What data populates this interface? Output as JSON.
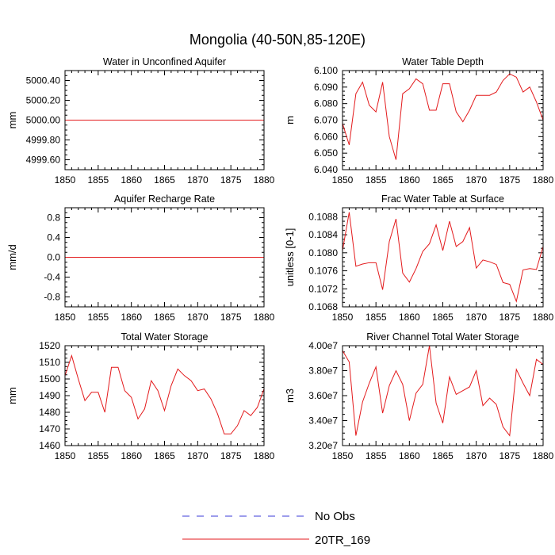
{
  "figure": {
    "title": "Mongolia (40-50N,85-120E)",
    "legend": [
      {
        "label": "No Obs",
        "color": "#3b3bd9",
        "dash": "dashed"
      },
      {
        "label": "20TR_169",
        "color": "#e31a1c",
        "dash": "solid"
      }
    ]
  },
  "chart_data": [
    {
      "type": "line",
      "title": "Water in Unconfined Aquifer",
      "xlabel": "",
      "ylabel": "mm",
      "xlim": [
        1850,
        1880
      ],
      "ylim": [
        4999.5,
        5000.5
      ],
      "xticks": [
        "1850",
        "1855",
        "1860",
        "1865",
        "1870",
        "1875",
        "1880"
      ],
      "yticks": [
        {
          "v": 4999.6,
          "label": "4999.60"
        },
        {
          "v": 4999.8,
          "label": "4999.80"
        },
        {
          "v": 5000.0,
          "label": "5000.00"
        },
        {
          "v": 5000.2,
          "label": "5000.20"
        },
        {
          "v": 5000.4,
          "label": "5000.40"
        }
      ],
      "series": [
        {
          "name": "20TR_169",
          "color": "#e31a1c",
          "x_start": 1850,
          "values": [
            5000,
            5000,
            5000,
            5000,
            5000,
            5000,
            5000,
            5000,
            5000,
            5000,
            5000,
            5000,
            5000,
            5000,
            5000,
            5000,
            5000,
            5000,
            5000,
            5000,
            5000,
            5000,
            5000,
            5000,
            5000,
            5000,
            5000,
            5000,
            5000,
            5000,
            5000
          ]
        }
      ]
    },
    {
      "type": "line",
      "title": "Water Table Depth",
      "xlabel": "",
      "ylabel": "m",
      "xlim": [
        1850,
        1880
      ],
      "ylim": [
        6.04,
        6.1
      ],
      "xticks": [
        "1850",
        "1855",
        "1860",
        "1865",
        "1870",
        "1875",
        "1880"
      ],
      "yticks": [
        {
          "v": 6.04,
          "label": "6.040"
        },
        {
          "v": 6.05,
          "label": "6.050"
        },
        {
          "v": 6.06,
          "label": "6.060"
        },
        {
          "v": 6.07,
          "label": "6.070"
        },
        {
          "v": 6.08,
          "label": "6.080"
        },
        {
          "v": 6.09,
          "label": "6.090"
        },
        {
          "v": 6.1,
          "label": "6.100"
        }
      ],
      "series": [
        {
          "name": "20TR_169",
          "color": "#e31a1c",
          "x_start": 1850,
          "values": [
            6.068,
            6.055,
            6.086,
            6.093,
            6.079,
            6.075,
            6.093,
            6.06,
            6.046,
            6.086,
            6.089,
            6.095,
            6.092,
            6.076,
            6.076,
            6.092,
            6.092,
            6.075,
            6.069,
            6.076,
            6.085,
            6.085,
            6.085,
            6.087,
            6.094,
            6.098,
            6.096,
            6.087,
            6.09,
            6.081,
            6.07
          ]
        }
      ]
    },
    {
      "type": "line",
      "title": "Aquifer Recharge Rate",
      "xlabel": "",
      "ylabel": "mm/d",
      "xlim": [
        1850,
        1880
      ],
      "ylim": [
        -1.0,
        1.0
      ],
      "xticks": [
        "1850",
        "1855",
        "1860",
        "1865",
        "1870",
        "1875",
        "1880"
      ],
      "yticks": [
        {
          "v": -0.8,
          "label": "-0.8"
        },
        {
          "v": -0.4,
          "label": "-0.4"
        },
        {
          "v": 0.0,
          "label": "0.0"
        },
        {
          "v": 0.4,
          "label": "0.4"
        },
        {
          "v": 0.8,
          "label": "0.8"
        }
      ],
      "series": [
        {
          "name": "20TR_169",
          "color": "#e31a1c",
          "x_start": 1850,
          "values": [
            0,
            0,
            0,
            0,
            0,
            0,
            0,
            0,
            0,
            0,
            0,
            0,
            0,
            0,
            0,
            0,
            0,
            0,
            0,
            0,
            0,
            0,
            0,
            0,
            0,
            0,
            0,
            0,
            0,
            0,
            0
          ]
        }
      ]
    },
    {
      "type": "line",
      "title": "Frac Water Table at Surface",
      "xlabel": "",
      "ylabel": "unitless [0-1]",
      "xlim": [
        1850,
        1880
      ],
      "ylim": [
        0.1068,
        0.109
      ],
      "xticks": [
        "1850",
        "1855",
        "1860",
        "1865",
        "1870",
        "1875",
        "1880"
      ],
      "yticks": [
        {
          "v": 0.1068,
          "label": "0.1068"
        },
        {
          "v": 0.1072,
          "label": "0.1072"
        },
        {
          "v": 0.1076,
          "label": "0.1076"
        },
        {
          "v": 0.108,
          "label": "0.1080"
        },
        {
          "v": 0.1084,
          "label": "0.1084"
        },
        {
          "v": 0.1088,
          "label": "0.1088"
        }
      ],
      "series": [
        {
          "name": "20TR_169",
          "color": "#e31a1c",
          "x_start": 1850,
          "values": [
            0.10805,
            0.1089,
            0.1077,
            0.10775,
            0.10778,
            0.10778,
            0.10718,
            0.10825,
            0.10875,
            0.10755,
            0.10735,
            0.10765,
            0.10803,
            0.1082,
            0.10862,
            0.10805,
            0.1087,
            0.10814,
            0.10825,
            0.10856,
            0.10766,
            0.10784,
            0.1078,
            0.10774,
            0.10734,
            0.1073,
            0.10692,
            0.10762,
            0.10765,
            0.10763,
            0.10814
          ]
        }
      ]
    },
    {
      "type": "line",
      "title": "Total Water Storage",
      "xlabel": "",
      "ylabel": "mm",
      "xlim": [
        1850,
        1880
      ],
      "ylim": [
        1460,
        1520
      ],
      "xticks": [
        "1850",
        "1855",
        "1860",
        "1865",
        "1870",
        "1875",
        "1880"
      ],
      "yticks": [
        {
          "v": 1460,
          "label": "1460"
        },
        {
          "v": 1470,
          "label": "1470"
        },
        {
          "v": 1480,
          "label": "1480"
        },
        {
          "v": 1490,
          "label": "1490"
        },
        {
          "v": 1500,
          "label": "1500"
        },
        {
          "v": 1510,
          "label": "1510"
        },
        {
          "v": 1520,
          "label": "1520"
        }
      ],
      "series": [
        {
          "name": "20TR_169",
          "color": "#e31a1c",
          "x_start": 1850,
          "values": [
            1502,
            1514,
            1500,
            1487,
            1492,
            1492,
            1480,
            1507,
            1507,
            1493,
            1489,
            1476,
            1482,
            1499,
            1493,
            1481,
            1496,
            1506,
            1502,
            1499,
            1493,
            1494,
            1488,
            1479,
            1467,
            1467,
            1472,
            1481,
            1478,
            1483,
            1494
          ]
        }
      ]
    },
    {
      "type": "line",
      "title": "River Channel Total Water Storage",
      "xlabel": "",
      "ylabel": "m3",
      "xlim": [
        1850,
        1880
      ],
      "ylim": [
        32000000.0,
        40000000.0
      ],
      "xticks": [
        "1850",
        "1855",
        "1860",
        "1865",
        "1870",
        "1875",
        "1880"
      ],
      "yticks": [
        {
          "v": 32000000,
          "label": "3.20e7"
        },
        {
          "v": 34000000,
          "label": "3.40e7"
        },
        {
          "v": 36000000,
          "label": "3.60e7"
        },
        {
          "v": 38000000,
          "label": "3.80e7"
        },
        {
          "v": 40000000,
          "label": "4.00e7"
        }
      ],
      "series": [
        {
          "name": "20TR_169",
          "color": "#e31a1c",
          "x_start": 1850,
          "values": [
            39600000,
            38700000,
            32800000,
            35500000,
            37000000,
            38300000,
            34600000,
            36800000,
            38000000,
            36900000,
            34000000,
            36200000,
            36900000,
            40000000,
            35400000,
            33800000,
            37500000,
            36100000,
            36400000,
            36700000,
            38000000,
            35200000,
            35800000,
            35300000,
            33500000,
            32800000,
            38100000,
            37000000,
            36000000,
            38900000,
            38500000
          ]
        }
      ]
    }
  ]
}
